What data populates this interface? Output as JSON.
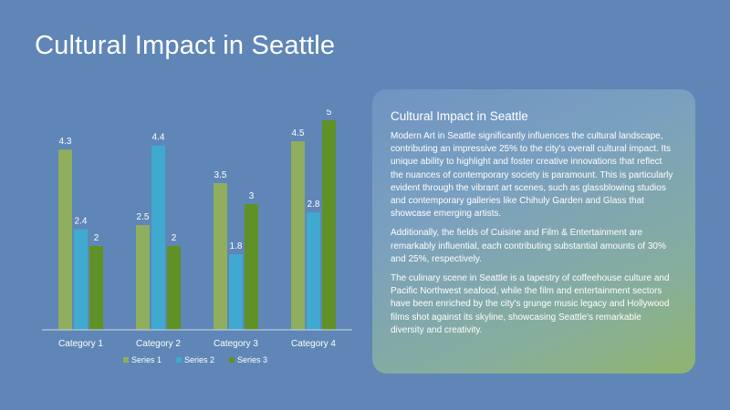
{
  "slide": {
    "title": "Cultural Impact in Seattle"
  },
  "panel": {
    "title": "Cultural Impact in Seattle",
    "paragraphs": [
      "Modern Art in Seattle significantly influences the cultural landscape, contributing an impressive 25% to the city's overall cultural impact. Its unique ability to highlight and foster creative innovations that reflect the nuances of contemporary society is paramount. This is particularly evident through the vibrant art scenes, such as glassblowing studios and contemporary galleries like Chihuly Garden and Glass that showcase emerging artists.",
      "Additionally, the fields of Cuisine and Film & Entertainment are remarkably influential, each contributing substantial amounts of 30% and 25%, respectively.",
      "The culinary scene in Seattle is a tapestry of coffeehouse culture and Pacific Northwest seafood, while the film and entertainment sectors have been enriched by the city's grunge music legacy and Hollywood films shot against its skyline, showcasing Seattle's remarkable diversity and creativity."
    ]
  },
  "chart_data": {
    "type": "bar",
    "categories": [
      "Category 1",
      "Category 2",
      "Category 3",
      "Category 4"
    ],
    "series": [
      {
        "name": "Series 1",
        "values": [
          4.3,
          2.5,
          3.5,
          4.5
        ],
        "color": "#8fae5e"
      },
      {
        "name": "Series 2",
        "values": [
          2.4,
          4.4,
          1.8,
          2.8
        ],
        "color": "#3fa9cf"
      },
      {
        "name": "Series 3",
        "values": [
          2,
          2,
          3,
          5
        ],
        "color": "#5f9127"
      }
    ],
    "ylim": [
      0,
      5
    ],
    "grid": false,
    "legend_position": "bottom",
    "data_labels": true
  }
}
